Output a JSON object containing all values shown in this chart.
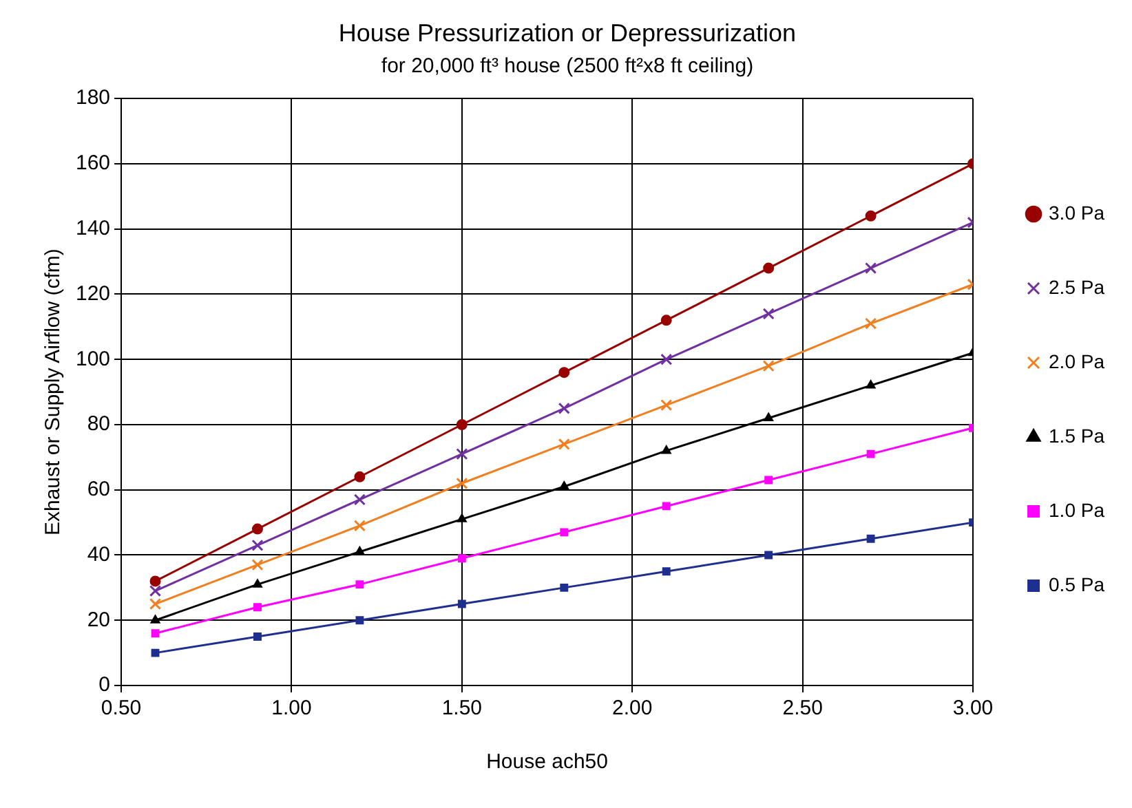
{
  "chart_data": {
    "type": "line",
    "title": "House Pressurization or Depressurization",
    "subtitle": "for 20,000 ft³ house (2500 ft²x8 ft ceiling)",
    "xlabel": "House ach50",
    "ylabel": "Exhaust or Supply Airflow (cfm)",
    "x": [
      0.6,
      0.9,
      1.2,
      1.5,
      1.8,
      2.1,
      2.4,
      2.7,
      3.0
    ],
    "series": [
      {
        "name": "3.0 Pa",
        "color": "#990000",
        "marker": "circle",
        "values": [
          32,
          48,
          64,
          80,
          96,
          112,
          128,
          144,
          160
        ]
      },
      {
        "name": "2.5 Pa",
        "color": "#7030a0",
        "marker": "cross",
        "values": [
          29,
          43,
          57,
          71,
          85,
          100,
          114,
          128,
          142
        ]
      },
      {
        "name": "2.0 Pa",
        "color": "#f07f20",
        "marker": "cross",
        "values": [
          25,
          37,
          49,
          62,
          74,
          86,
          98,
          111,
          123
        ]
      },
      {
        "name": "1.5 Pa",
        "color": "#000000",
        "marker": "triangle",
        "values": [
          20,
          31,
          41,
          51,
          61,
          72,
          82,
          92,
          102
        ]
      },
      {
        "name": "1.0 Pa",
        "color": "#ff00ff",
        "marker": "square",
        "values": [
          16,
          24,
          31,
          39,
          47,
          55,
          63,
          71,
          79
        ]
      },
      {
        "name": "0.5 Pa",
        "color": "#1f2f8f",
        "marker": "square",
        "values": [
          10,
          15,
          20,
          25,
          30,
          35,
          40,
          45,
          50
        ]
      }
    ],
    "xlim": [
      0.5,
      3.0
    ],
    "xticks": [
      {
        "value": 0.5,
        "label": "0.50"
      },
      {
        "value": 1,
        "label": "1.00"
      },
      {
        "value": 1.5,
        "label": "1.50"
      },
      {
        "value": 2,
        "label": "2.00"
      },
      {
        "value": 2.5,
        "label": "2.50"
      },
      {
        "value": 3,
        "label": "3.00"
      }
    ],
    "ylim": [
      0,
      180
    ],
    "yticks": [
      0,
      20,
      40,
      60,
      80,
      100,
      120,
      140,
      160,
      180
    ],
    "grid": true,
    "legend": "right",
    "line_style": "solid"
  }
}
